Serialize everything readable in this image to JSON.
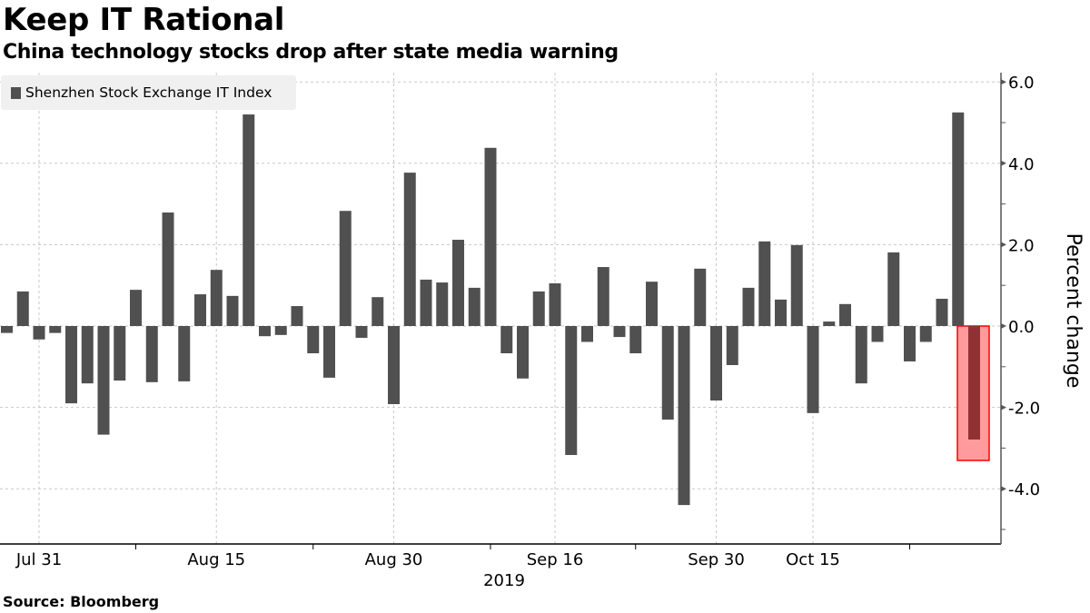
{
  "header": {
    "title": "Keep IT Rational",
    "subtitle": "China technology stocks drop after state media warning"
  },
  "footer": {
    "source": "Source: Bloomberg"
  },
  "colors": {
    "bar": "#505050",
    "highlight_bar": "#913133",
    "highlight_fill": "#ff9b9d",
    "highlight_border": "#ff0000",
    "grid": "#c8c8c8",
    "legend_bg": "#f0f0f0"
  },
  "chart_data": {
    "type": "bar",
    "title": "Keep IT Rational",
    "subtitle": "China technology stocks drop after state media warning",
    "xlabel": "2019",
    "ylabel": "Percent change",
    "ylim": [
      -5.4,
      6.2
    ],
    "y_ticks": [
      "6.0",
      "4.0",
      "2.0",
      "0.0",
      "-2.0",
      "-4.0"
    ],
    "y_tick_values": [
      6,
      4,
      2,
      0,
      -2,
      -4
    ],
    "grid": true,
    "legend_position": "top-left",
    "y_axis_side": "right",
    "series": [
      {
        "name": "Shenzhen Stock Exchange IT Index",
        "values": [
          -0.17,
          0.85,
          -0.33,
          -0.17,
          -1.9,
          -1.41,
          -2.67,
          -1.34,
          0.89,
          -1.38,
          2.79,
          -1.36,
          0.78,
          1.38,
          0.74,
          5.2,
          -0.25,
          -0.22,
          0.49,
          -0.67,
          -1.27,
          2.83,
          -0.29,
          0.71,
          -1.92,
          3.77,
          1.14,
          1.07,
          2.12,
          0.94,
          4.38,
          -0.67,
          -1.29,
          0.85,
          1.05,
          -3.17,
          -0.39,
          1.45,
          -0.27,
          -0.67,
          1.09,
          -2.3,
          -4.4,
          1.41,
          -1.83,
          -0.96,
          0.94,
          2.08,
          0.65,
          1.99,
          -2.14,
          0.11,
          0.54,
          -1.41,
          -0.39,
          1.81,
          -0.87,
          -0.39,
          0.67,
          5.25,
          -2.79
        ]
      }
    ],
    "highlighted_index": 60,
    "x_ticks": [
      {
        "label": "Jul 31",
        "index": 2
      },
      {
        "label": "Aug 15",
        "index": 13
      },
      {
        "label": "Aug 30",
        "index": 24
      },
      {
        "label": "Sep 16",
        "index": 34
      },
      {
        "label": "Sep 30",
        "index": 44
      },
      {
        "label": "Oct 15",
        "index": 50
      }
    ]
  }
}
